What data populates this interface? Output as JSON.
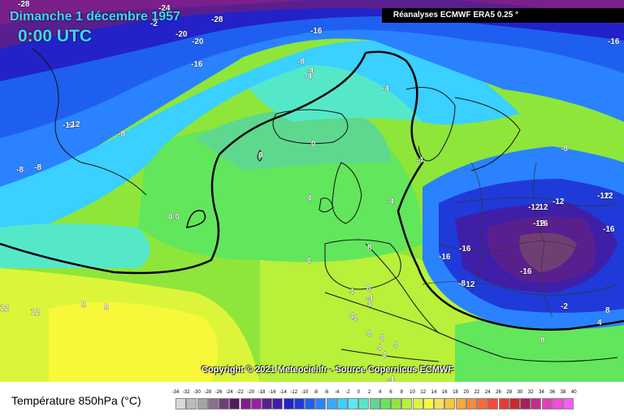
{
  "header": {
    "date": "Dimanche 1 décembre 1957",
    "time": "0:00 UTC",
    "source": "Réanalyses ECMWF ERA5 0.25 °"
  },
  "copyright": "Copyright © 2021 Meteociel.fr - Source Copernicus ECMWF",
  "legend": {
    "title": "Température 850hPa (°C)",
    "ticks": [
      "-34",
      "-32",
      "-30",
      "-28",
      "-26",
      "-24",
      "-22",
      "-20",
      "-18",
      "-16",
      "-14",
      "-12",
      "-10",
      "-8",
      "-6",
      "-4",
      "-2",
      "0",
      "2",
      "4",
      "6",
      "8",
      "10",
      "12",
      "14",
      "16",
      "18",
      "20",
      "22",
      "24",
      "26",
      "28",
      "30",
      "32",
      "34",
      "36",
      "38",
      "40"
    ],
    "colors": [
      "#d9d9d9",
      "#bcbcbc",
      "#a4a4a4",
      "#8b6f8f",
      "#6f3f73",
      "#541a5c",
      "#7b1f8a",
      "#9a1fa8",
      "#5a1f8f",
      "#3f1fa8",
      "#2222c8",
      "#1f3ad8",
      "#1f5ff0",
      "#2a82ff",
      "#3aa8ff",
      "#3ad0ff",
      "#5ae8f8",
      "#55e8c8",
      "#5ed88f",
      "#62e65c",
      "#8ee63a",
      "#b8f03a",
      "#dcf53a",
      "#f8f83a",
      "#f8e05a",
      "#f8c83a",
      "#f8a83a",
      "#f88a3a",
      "#f86a3a",
      "#f84a3a",
      "#e83a3a",
      "#c82a2a",
      "#a81f5a",
      "#c82a8a",
      "#e83ab8",
      "#f84ad8",
      "#ff5aff"
    ]
  },
  "map_labels": [
    "-28",
    "-24",
    "-2",
    "-28",
    "-20",
    "-16",
    "-20",
    "-16",
    "-16",
    "-12",
    "-8",
    "-4",
    "-4",
    "-8",
    "-12",
    "-8",
    "-8",
    "-12",
    "-12",
    "-4",
    "0",
    "0",
    "-4",
    "-8",
    "-4",
    "0",
    "-0",
    "-12",
    "-12",
    "-16",
    "-16",
    "-8",
    "-16",
    "-12",
    "-16",
    "-12",
    "-12",
    "-16",
    "4",
    "8",
    "4",
    "8",
    "4",
    "4",
    "4",
    "4",
    "4",
    "4",
    "8",
    "12",
    "12",
    "8",
    "8",
    "-2",
    "-4",
    "4",
    "4",
    "8",
    "-4",
    "4",
    "4"
  ]
}
